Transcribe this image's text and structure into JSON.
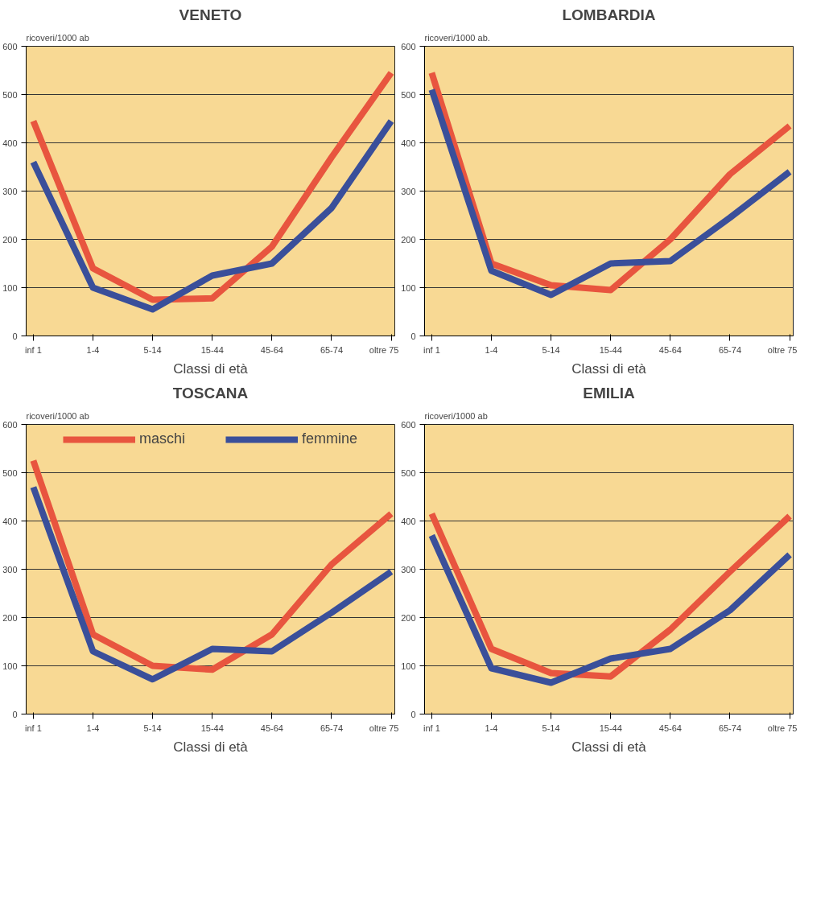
{
  "chart_data": [
    {
      "type": "line",
      "title": "VENETO",
      "ylabel": "ricoveri/1000 ab",
      "xlabel": "Classi di età",
      "categories": [
        "inf 1",
        "1-4",
        "5-14",
        "15-44",
        "45-64",
        "65-74",
        "oltre 75"
      ],
      "ylim": [
        0,
        600
      ],
      "yticks": [
        0,
        100,
        200,
        300,
        400,
        500,
        600
      ],
      "grid": "y",
      "line_style": "solid",
      "series": [
        {
          "color": "#e8553f",
          "values": [
            445,
            140,
            75,
            78,
            185,
            370,
            545
          ]
        },
        {
          "color": "#3a4f9a",
          "values": [
            360,
            100,
            55,
            125,
            150,
            265,
            445
          ]
        }
      ]
    },
    {
      "type": "line",
      "title": "LOMBARDIA",
      "ylabel": "ricoveri/1000 ab.",
      "xlabel": "Classi di età",
      "categories": [
        "inf 1",
        "1-4",
        "5-14",
        "15-44",
        "45-64",
        "65-74",
        "oltre 75"
      ],
      "ylim": [
        0,
        600
      ],
      "yticks": [
        0,
        100,
        200,
        300,
        400,
        500,
        600
      ],
      "grid": "y",
      "line_style": "solid",
      "series": [
        {
          "color": "#e8553f",
          "values": [
            545,
            150,
            105,
            95,
            200,
            335,
            435
          ]
        },
        {
          "color": "#3a4f9a",
          "values": [
            510,
            135,
            85,
            150,
            155,
            245,
            340
          ]
        }
      ]
    },
    {
      "type": "line",
      "title": "TOSCANA",
      "ylabel": "ricoveri/1000 ab",
      "xlabel": "Classi di età",
      "categories": [
        "inf 1",
        "1-4",
        "5-14",
        "15-44",
        "45-64",
        "65-74",
        "oltre 75"
      ],
      "ylim": [
        0,
        600
      ],
      "yticks": [
        0,
        100,
        200,
        300,
        400,
        500,
        600
      ],
      "grid": "y",
      "legend": "top",
      "line_style": "solid",
      "series": [
        {
          "name": "maschi",
          "color": "#e8553f",
          "values": [
            525,
            165,
            100,
            92,
            165,
            310,
            415
          ]
        },
        {
          "name": "femmine",
          "color": "#3a4f9a",
          "values": [
            470,
            130,
            72,
            135,
            130,
            210,
            295
          ]
        }
      ]
    },
    {
      "type": "line",
      "title": "EMILIA",
      "ylabel": "ricoveri/1000 ab",
      "xlabel": "Classi di età",
      "categories": [
        "inf 1",
        "1-4",
        "5-14",
        "15-44",
        "45-64",
        "65-74",
        "oltre 75"
      ],
      "ylim": [
        0,
        600
      ],
      "yticks": [
        0,
        100,
        200,
        300,
        400,
        500,
        600
      ],
      "grid": "y",
      "line_style": "solid",
      "series": [
        {
          "color": "#e8553f",
          "values": [
            415,
            135,
            85,
            78,
            175,
            295,
            410
          ]
        },
        {
          "color": "#3a4f9a",
          "values": [
            370,
            95,
            65,
            115,
            135,
            215,
            330
          ]
        }
      ]
    }
  ]
}
